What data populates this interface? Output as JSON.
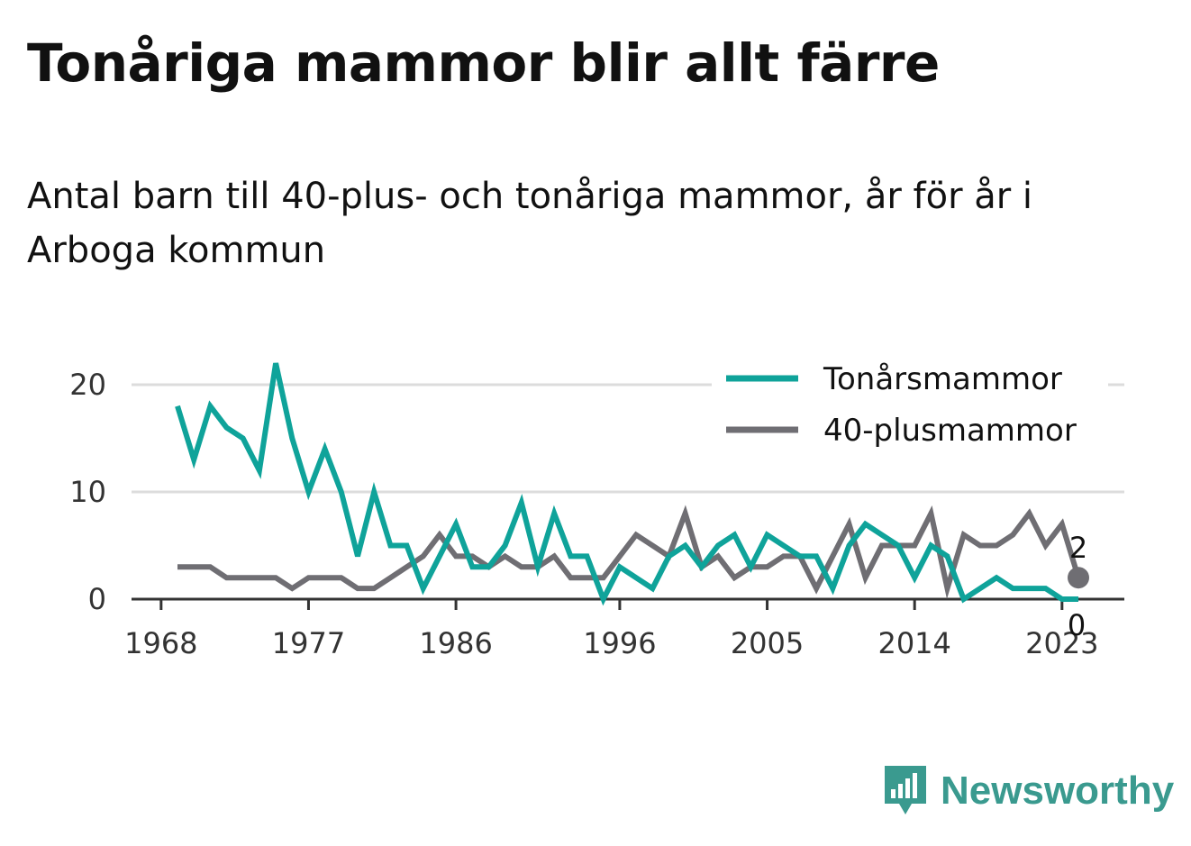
{
  "header": {
    "title": "Tonåriga mammor blir allt färre",
    "subtitle": "Antal barn till 40-plus- och tonåriga mammor, år för år i Arboga kommun"
  },
  "brand": {
    "name": "Newsworthy",
    "icon": "bar-chart-speech-icon",
    "color": "#3a9a8f"
  },
  "chart_data": {
    "type": "line",
    "title": "Tonåriga mammor blir allt färre",
    "subtitle": "Antal barn till 40-plus- och tonåriga mammor, år för år i Arboga kommun",
    "xlabel": "",
    "ylabel": "",
    "x": [
      1969,
      1970,
      1971,
      1972,
      1973,
      1974,
      1975,
      1976,
      1977,
      1978,
      1979,
      1980,
      1981,
      1982,
      1983,
      1984,
      1985,
      1986,
      1987,
      1988,
      1989,
      1990,
      1991,
      1992,
      1993,
      1994,
      1995,
      1996,
      1997,
      1998,
      1999,
      2000,
      2001,
      2002,
      2003,
      2004,
      2005,
      2006,
      2007,
      2008,
      2009,
      2010,
      2011,
      2012,
      2013,
      2014,
      2015,
      2016,
      2017,
      2018,
      2019,
      2020,
      2021,
      2022,
      2023,
      2024
    ],
    "xticks": [
      "1968",
      "1977",
      "1986",
      "1996",
      "2005",
      "2014",
      "2023"
    ],
    "yticks": [
      "0",
      "10",
      "20"
    ],
    "ylim": [
      0,
      22
    ],
    "grid": true,
    "legend_position": "top-right",
    "series": [
      {
        "name": "Tonårsmammor",
        "color": "#0fa39a",
        "values": [
          18,
          13,
          18,
          16,
          15,
          12,
          22,
          15,
          10,
          14,
          10,
          4,
          10,
          5,
          5,
          1,
          4,
          7,
          3,
          3,
          5,
          9,
          3,
          8,
          4,
          4,
          0,
          3,
          2,
          1,
          4,
          5,
          3,
          5,
          6,
          3,
          6,
          5,
          4,
          4,
          1,
          5,
          7,
          6,
          5,
          2,
          5,
          4,
          0,
          1,
          2,
          1,
          1,
          1,
          0,
          0
        ],
        "end_label": "0"
      },
      {
        "name": "40-plusmammor",
        "color": "#6f6e73",
        "values": [
          3,
          3,
          3,
          2,
          2,
          2,
          2,
          1,
          2,
          2,
          2,
          1,
          1,
          2,
          3,
          4,
          6,
          4,
          4,
          3,
          4,
          3,
          3,
          4,
          2,
          2,
          2,
          4,
          6,
          5,
          4,
          8,
          3,
          4,
          2,
          3,
          3,
          4,
          4,
          1,
          4,
          7,
          2,
          5,
          5,
          5,
          8,
          1,
          6,
          5,
          5,
          6,
          8,
          5,
          7,
          2
        ],
        "end_label": "2"
      }
    ]
  }
}
